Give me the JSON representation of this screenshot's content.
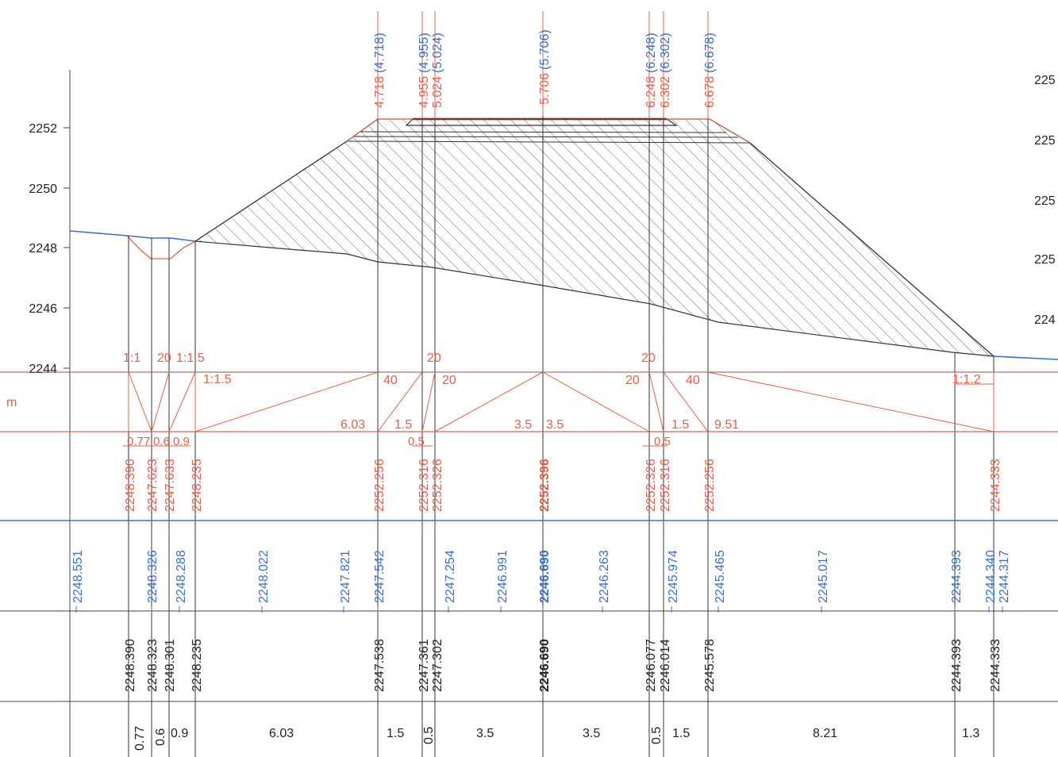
{
  "colors": {
    "red": "#e0604a",
    "blue": "#3a6fc4",
    "black": "#222222",
    "grid": "#444444",
    "hatch": "#555555"
  },
  "elevation_axis": {
    "ticks": [
      "2252",
      "2250",
      "2248",
      "2246",
      "2244"
    ],
    "right_ticks": [
      "225",
      "225",
      "225",
      "225",
      "224"
    ]
  },
  "unit_label": "m",
  "top_labels": [
    {
      "red": "4.718",
      "blue": "(4.718)"
    },
    {
      "red": "4.955",
      "blue": "(4.955)"
    },
    {
      "red": "5.024",
      "blue": "(5.024)"
    },
    {
      "red": "5.706",
      "blue": "(5.706)"
    },
    {
      "red": "6.248",
      "blue": "(6.248)"
    },
    {
      "red": "6.302",
      "blue": "(6.302)"
    },
    {
      "red": "6.678",
      "blue": "(6.678)"
    }
  ],
  "slope_labels": [
    "1:1",
    "20",
    "1:1.5",
    "1:1.5",
    "20",
    "20",
    "1:1.2"
  ],
  "crossfall_labels": [
    "40",
    "20",
    "20",
    "40"
  ],
  "width_labels": [
    "6.03",
    "1.5",
    "3.5",
    "3.5",
    "1.5",
    "9.51"
  ],
  "small_width_labels": [
    "0.77",
    "0.6",
    "0.9",
    "0.5",
    "0.5"
  ],
  "design_elevations": [
    "2248.390",
    "2247.623",
    "2247.633",
    "2248.235",
    "2252.256",
    "2252.316",
    "2252.326",
    "2252.396",
    "2252.326",
    "2252.316",
    "2252.256",
    "2244.333"
  ],
  "ground_elevations": [
    "2248.551",
    "2248.326",
    "2248.288",
    "2248.022",
    "2247.821",
    "2247.542",
    "2247.254",
    "2246.991",
    "2246.690",
    "2246.263",
    "2245.974",
    "2245.465",
    "2245.017",
    "2244.393",
    "2244.340",
    "2244.317"
  ],
  "existing_elevations": [
    "2248.390",
    "2248.323",
    "2248.301",
    "2248.235",
    "2247.538",
    "2247.361",
    "2247.302",
    "2246.690",
    "2246.077",
    "2246.014",
    "2245.578",
    "2244.393",
    "2244.333"
  ],
  "bottom_widths": [
    "0.77",
    "0.6",
    "0.9",
    "6.03",
    "1.5",
    "0.5",
    "3.5",
    "3.5",
    "0.5",
    "1.5",
    "8.21",
    "1.3"
  ]
}
